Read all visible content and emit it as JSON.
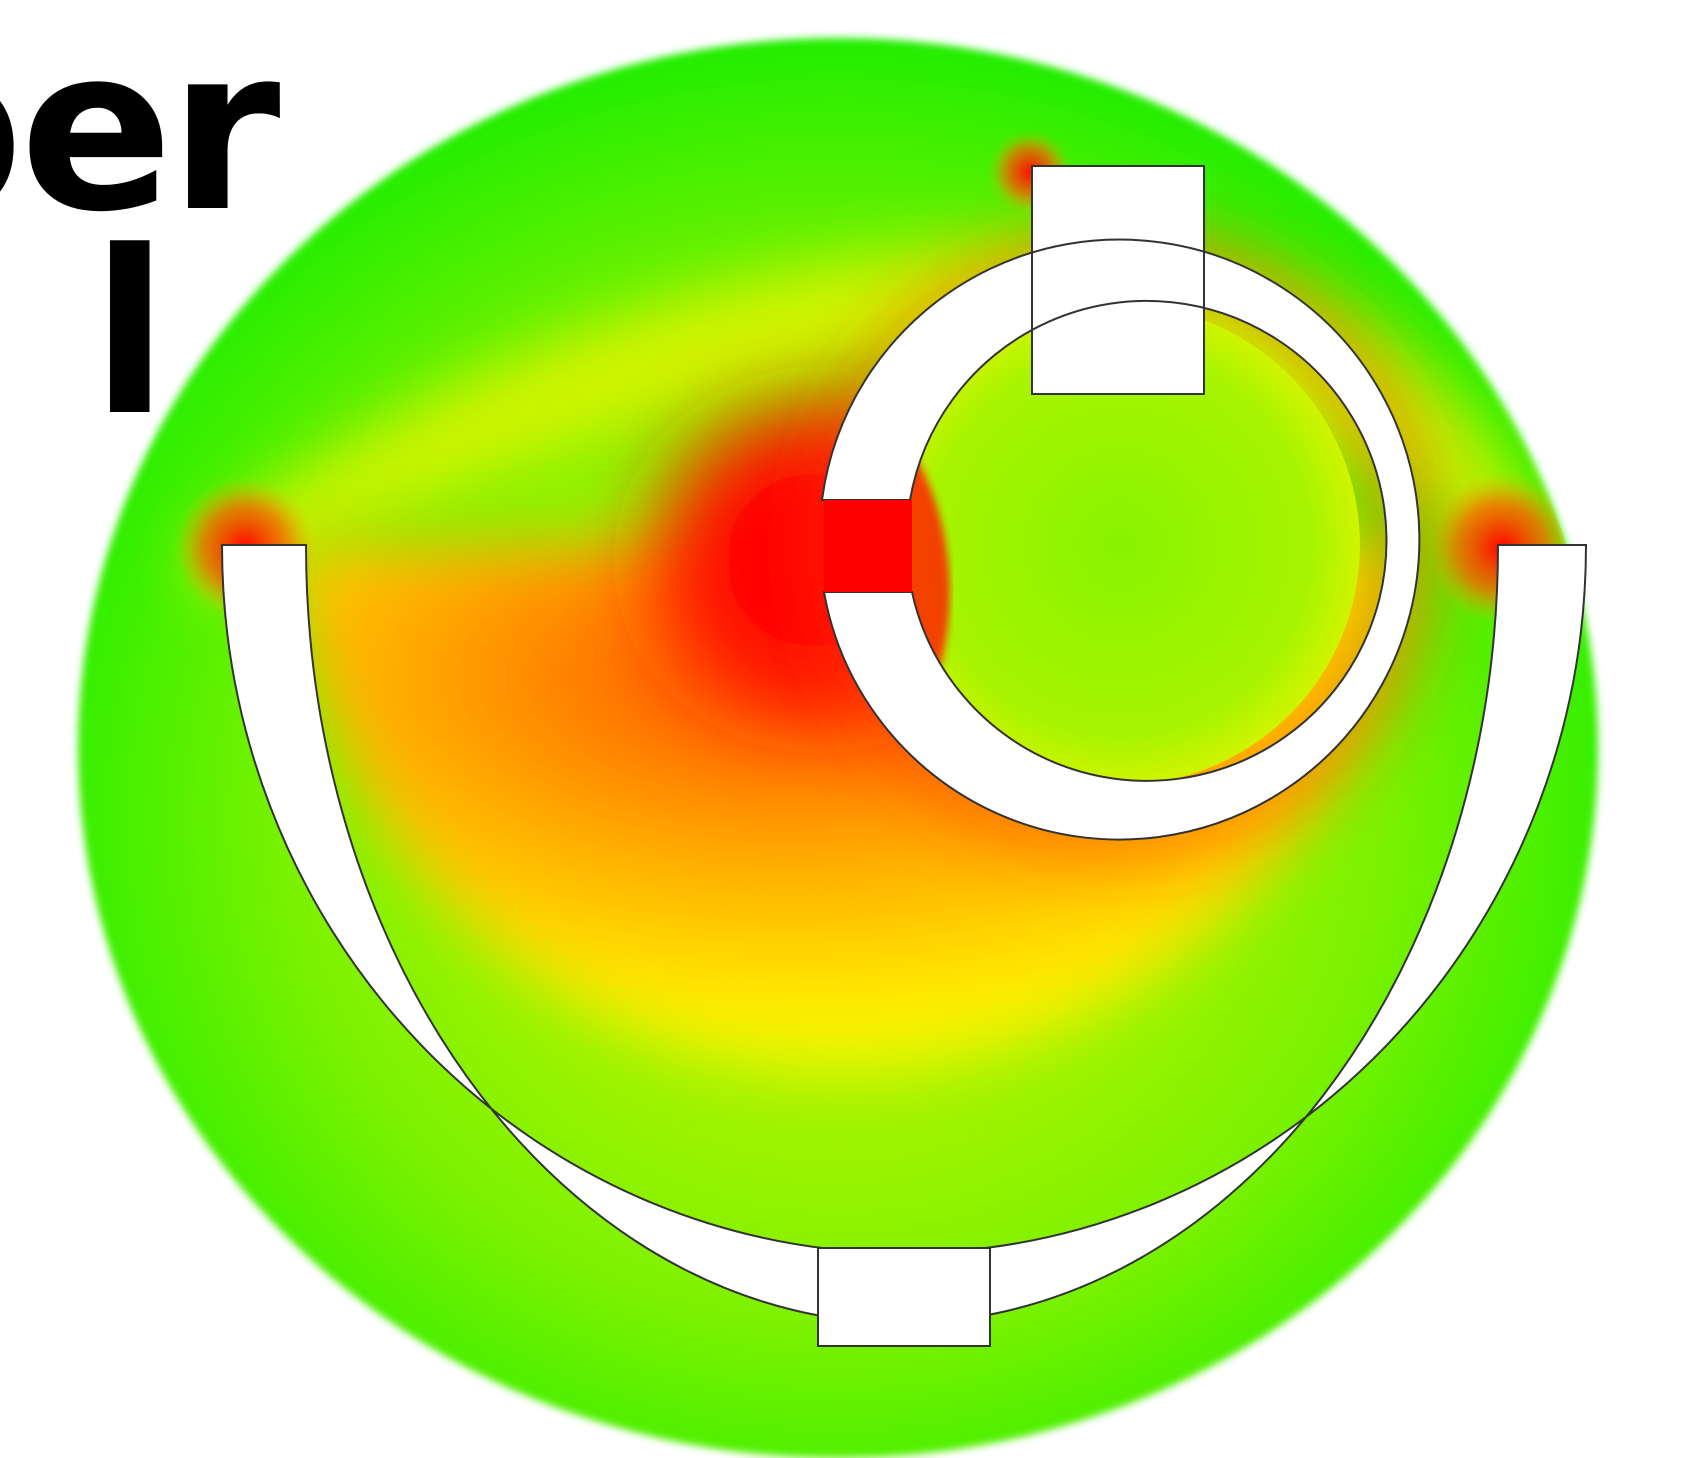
{
  "heading": {
    "line1": "per",
    "line2": "l"
  },
  "colors": {
    "outer_field": "#22ee00",
    "mid_field": "#ffee00",
    "hot_field": "#ff0000",
    "conductor_fill": "#ffffff",
    "outline": "#333333"
  }
}
